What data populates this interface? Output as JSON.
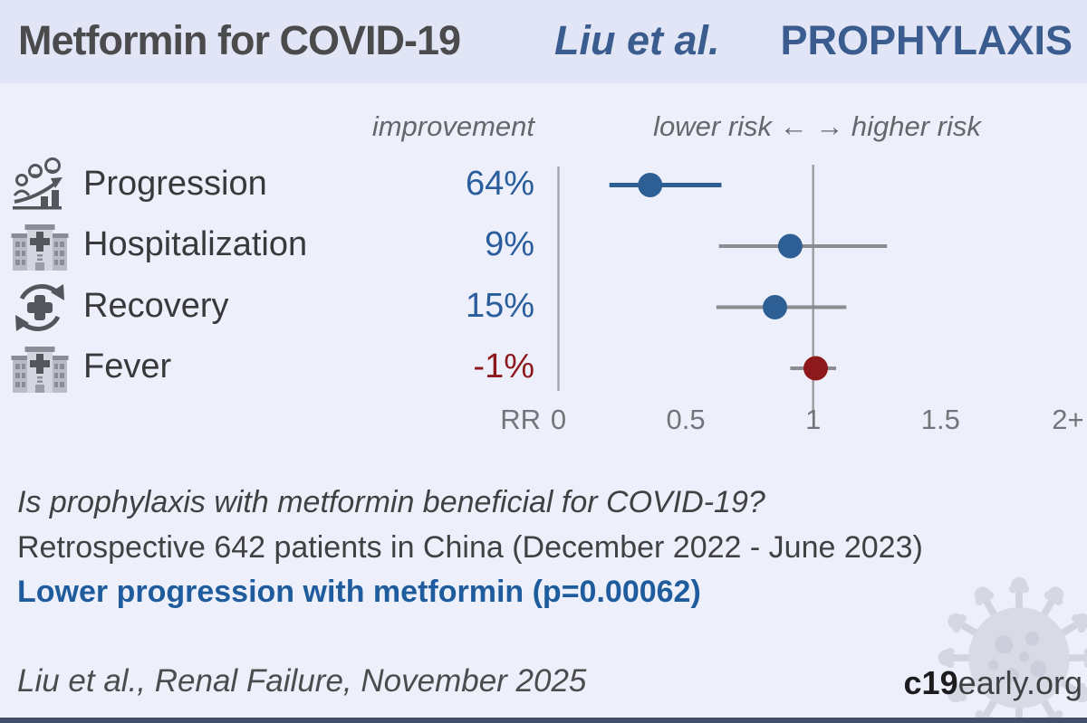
{
  "header": {
    "title": "Metformin for COVID-19",
    "author": "Liu et al.",
    "stage": "PROPHYLAXIS"
  },
  "chart_data": {
    "type": "forest",
    "title": "Metformin for COVID-19, Liu et al., PROPHYLAXIS",
    "column_headers": {
      "improvement": "improvement",
      "risk_direction": "lower risk ← → higher risk"
    },
    "axis": {
      "label": "RR",
      "range": [
        0,
        2
      ],
      "ticks": [
        {
          "value": 0,
          "label": "0"
        },
        {
          "value": 0.5,
          "label": "0.5"
        },
        {
          "value": 1,
          "label": "1"
        },
        {
          "value": 1.5,
          "label": "1.5"
        },
        {
          "value": 2,
          "label": "2+"
        }
      ],
      "reference_lines": [
        0,
        1
      ]
    },
    "rows": [
      {
        "outcome": "Progression",
        "icon": "progression-icon",
        "improvement": "64%",
        "rr": 0.36,
        "ci_lower": 0.2,
        "ci_upper": 0.64,
        "point_color": "#2d5f94",
        "ci_color": "#2d5f94",
        "value_color": "#2a5d9c"
      },
      {
        "outcome": "Hospitalization",
        "icon": "hospital-icon",
        "improvement": "9%",
        "rr": 0.91,
        "ci_lower": 0.63,
        "ci_upper": 1.29,
        "point_color": "#2d5f94",
        "ci_color": "#8c8c90",
        "value_color": "#2a5d9c"
      },
      {
        "outcome": "Recovery",
        "icon": "recovery-icon",
        "improvement": "15%",
        "rr": 0.85,
        "ci_lower": 0.62,
        "ci_upper": 1.13,
        "point_color": "#2d5f94",
        "ci_color": "#8c8c90",
        "value_color": "#2a5d9c"
      },
      {
        "outcome": "Fever",
        "icon": "hospital-icon",
        "improvement": "-1%",
        "rr": 1.01,
        "ci_lower": 0.91,
        "ci_upper": 1.09,
        "point_color": "#8e191c",
        "ci_color": "#8c8c90",
        "value_color": "#8e191c"
      }
    ]
  },
  "summary": {
    "question": "Is prophylaxis with metformin beneficial for COVID-19?",
    "study": "Retrospective 642 patients in China (December 2022 - June 2023)",
    "finding": "Lower progression with metformin (p=0.00062)"
  },
  "footer": {
    "citation": "Liu et al., Renal Failure, November 2025",
    "site_bold": "c19",
    "site_rest": "early.org"
  },
  "colors": {
    "header_bg": "#e1e5f6",
    "page_bg": "#edf0fa",
    "accent_blue": "#2d5f94",
    "accent_red": "#8e191c",
    "finding_blue": "#1e5c9d",
    "axis_gray": "#9fa0a6",
    "bottom_bar": "#414f69"
  }
}
